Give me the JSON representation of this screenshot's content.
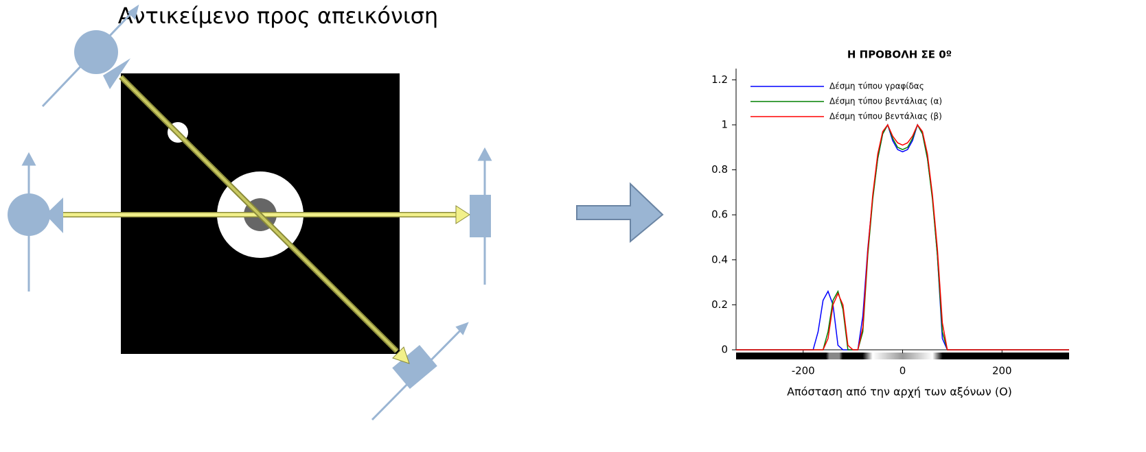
{
  "diagram": {
    "title": "Αντικείμενο προς απεικόνιση"
  },
  "chart_data": {
    "type": "line",
    "title": "Η ΠΡΟΒΟΛΗ ΣΕ 0º",
    "x_label": "Απόσταση από την αρχή των αξόνων (O)",
    "x": [
      -335,
      -180,
      -170,
      -160,
      -150,
      -140,
      -130,
      -120,
      -110,
      -100,
      -90,
      -80,
      -70,
      -60,
      -50,
      -40,
      -30,
      -20,
      -10,
      0,
      10,
      20,
      30,
      40,
      50,
      60,
      70,
      80,
      90,
      100,
      335
    ],
    "series": [
      {
        "name": "Δέσμη τύπου γραφίδας",
        "color": "#0000ff",
        "values": [
          0,
          0,
          0.08,
          0.22,
          0.26,
          0.2,
          0.02,
          0,
          0,
          0,
          0,
          0.15,
          0.45,
          0.68,
          0.85,
          0.96,
          1,
          0.93,
          0.89,
          0.88,
          0.89,
          0.93,
          1,
          0.96,
          0.85,
          0.68,
          0.42,
          0.05,
          0,
          0,
          0
        ]
      },
      {
        "name": "Δέσμη τύπου βεντάλιας (α)",
        "color": "#008000",
        "values": [
          0,
          0,
          0,
          0,
          0.08,
          0.22,
          0.26,
          0.18,
          0,
          0,
          0,
          0.08,
          0.42,
          0.67,
          0.85,
          0.96,
          1,
          0.94,
          0.9,
          0.89,
          0.9,
          0.94,
          1,
          0.96,
          0.85,
          0.67,
          0.42,
          0.08,
          0,
          0,
          0
        ]
      },
      {
        "name": "Δέσμη τύπου βεντάλιας (β)",
        "color": "#ff0000",
        "values": [
          0,
          0,
          0,
          0,
          0.05,
          0.2,
          0.25,
          0.2,
          0.02,
          0,
          0,
          0.1,
          0.44,
          0.69,
          0.87,
          0.97,
          1,
          0.95,
          0.92,
          0.91,
          0.92,
          0.95,
          1,
          0.97,
          0.87,
          0.69,
          0.45,
          0.12,
          0,
          0,
          0
        ]
      }
    ],
    "xlim": [
      -335,
      335
    ],
    "ylim": [
      0,
      1.25
    ],
    "xticks": [
      -200,
      0,
      200
    ],
    "yticks": [
      0,
      0.2,
      0.4,
      0.6,
      0.8,
      1,
      1.2
    ],
    "legend": "upper-left"
  }
}
